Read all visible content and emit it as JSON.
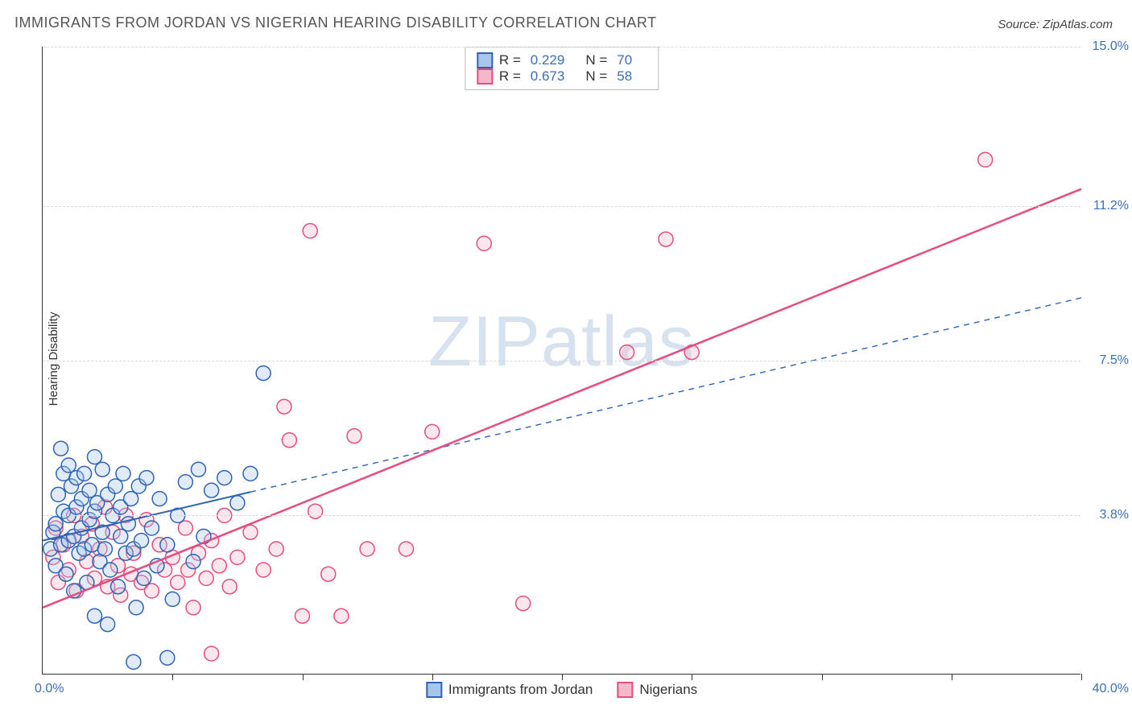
{
  "title": "IMMIGRANTS FROM JORDAN VS NIGERIAN HEARING DISABILITY CORRELATION CHART",
  "source_label": "Source: ",
  "source_name": "ZipAtlas.com",
  "y_axis_label": "Hearing Disability",
  "watermark": "ZIPatlas",
  "chart": {
    "type": "scatter",
    "xlim": [
      0,
      40
    ],
    "ylim": [
      0,
      15
    ],
    "x_min_label": "0.0%",
    "x_max_label": "40.0%",
    "y_ticks": [
      {
        "v": 3.8,
        "label": "3.8%"
      },
      {
        "v": 7.5,
        "label": "7.5%"
      },
      {
        "v": 11.2,
        "label": "11.2%"
      },
      {
        "v": 15.0,
        "label": "15.0%"
      }
    ],
    "x_tick_count": 8,
    "background_color": "#ffffff",
    "grid_color": "#d9d9d9",
    "axis_color": "#333333",
    "tick_label_color": "#3b6fb6",
    "marker_radius": 9,
    "series": [
      {
        "id": "jordan",
        "label": "Immigrants from Jordan",
        "fill": "#a8c6ec",
        "stroke": "#2e64b5",
        "trend_color": "#2e64b5",
        "trend_dash_solid_until_x": 8,
        "trend_line_width": 2,
        "R": 0.229,
        "N": 70,
        "trend": {
          "x1": 0,
          "y1": 3.2,
          "x2": 40,
          "y2": 9.0
        },
        "points": [
          [
            0.3,
            3.0
          ],
          [
            0.4,
            3.4
          ],
          [
            0.5,
            2.6
          ],
          [
            0.5,
            3.6
          ],
          [
            0.6,
            4.3
          ],
          [
            0.7,
            5.4
          ],
          [
            0.7,
            3.1
          ],
          [
            0.8,
            4.8
          ],
          [
            0.8,
            3.9
          ],
          [
            0.9,
            2.4
          ],
          [
            1.0,
            5.0
          ],
          [
            1.0,
            3.8
          ],
          [
            1.0,
            3.2
          ],
          [
            1.1,
            4.5
          ],
          [
            1.2,
            2.0
          ],
          [
            1.2,
            3.3
          ],
          [
            1.3,
            4.0
          ],
          [
            1.3,
            4.7
          ],
          [
            1.4,
            2.9
          ],
          [
            1.5,
            3.5
          ],
          [
            1.5,
            4.2
          ],
          [
            1.6,
            3.0
          ],
          [
            1.6,
            4.8
          ],
          [
            1.7,
            2.2
          ],
          [
            1.8,
            3.7
          ],
          [
            1.8,
            4.4
          ],
          [
            1.9,
            3.1
          ],
          [
            2.0,
            5.2
          ],
          [
            2.0,
            3.9
          ],
          [
            2.0,
            1.4
          ],
          [
            2.1,
            4.1
          ],
          [
            2.2,
            2.7
          ],
          [
            2.3,
            3.4
          ],
          [
            2.3,
            4.9
          ],
          [
            2.4,
            3.0
          ],
          [
            2.5,
            4.3
          ],
          [
            2.5,
            1.2
          ],
          [
            2.6,
            2.5
          ],
          [
            2.7,
            3.8
          ],
          [
            2.8,
            4.5
          ],
          [
            2.9,
            2.1
          ],
          [
            3.0,
            4.0
          ],
          [
            3.0,
            3.3
          ],
          [
            3.1,
            4.8
          ],
          [
            3.2,
            2.9
          ],
          [
            3.3,
            3.6
          ],
          [
            3.4,
            4.2
          ],
          [
            3.5,
            3.0
          ],
          [
            3.6,
            1.6
          ],
          [
            3.7,
            4.5
          ],
          [
            3.8,
            3.2
          ],
          [
            3.9,
            2.3
          ],
          [
            4.0,
            4.7
          ],
          [
            4.2,
            3.5
          ],
          [
            4.4,
            2.6
          ],
          [
            4.5,
            4.2
          ],
          [
            4.8,
            3.1
          ],
          [
            4.8,
            0.4
          ],
          [
            5.0,
            1.8
          ],
          [
            5.2,
            3.8
          ],
          [
            5.5,
            4.6
          ],
          [
            5.8,
            2.7
          ],
          [
            6.0,
            4.9
          ],
          [
            6.2,
            3.3
          ],
          [
            6.5,
            4.4
          ],
          [
            7.0,
            4.7
          ],
          [
            7.5,
            4.1
          ],
          [
            8.0,
            4.8
          ],
          [
            8.5,
            7.2
          ],
          [
            3.5,
            0.3
          ]
        ]
      },
      {
        "id": "nigerians",
        "label": "Nigerians",
        "fill": "#f3b9c8",
        "stroke": "#e54d80",
        "trend_color": "#e54d80",
        "trend_dash_solid_until_x": 40,
        "trend_line_width": 2.5,
        "R": 0.673,
        "N": 58,
        "trend": {
          "x1": 0,
          "y1": 1.6,
          "x2": 40,
          "y2": 11.6
        },
        "points": [
          [
            0.4,
            2.8
          ],
          [
            0.5,
            3.5
          ],
          [
            0.6,
            2.2
          ],
          [
            0.8,
            3.1
          ],
          [
            1.0,
            2.5
          ],
          [
            1.2,
            3.8
          ],
          [
            1.3,
            2.0
          ],
          [
            1.5,
            3.3
          ],
          [
            1.7,
            2.7
          ],
          [
            1.9,
            3.6
          ],
          [
            2.0,
            2.3
          ],
          [
            2.2,
            3.0
          ],
          [
            2.4,
            4.0
          ],
          [
            2.5,
            2.1
          ],
          [
            2.7,
            3.4
          ],
          [
            2.9,
            2.6
          ],
          [
            3.0,
            1.9
          ],
          [
            3.2,
            3.8
          ],
          [
            3.4,
            2.4
          ],
          [
            3.5,
            2.9
          ],
          [
            3.8,
            2.2
          ],
          [
            4.0,
            3.7
          ],
          [
            4.2,
            2.0
          ],
          [
            4.5,
            3.1
          ],
          [
            4.7,
            2.5
          ],
          [
            5.0,
            2.8
          ],
          [
            5.2,
            2.2
          ],
          [
            5.5,
            3.5
          ],
          [
            5.6,
            2.5
          ],
          [
            5.8,
            1.6
          ],
          [
            6.0,
            2.9
          ],
          [
            6.3,
            2.3
          ],
          [
            6.5,
            3.2
          ],
          [
            6.8,
            2.6
          ],
          [
            7.0,
            3.8
          ],
          [
            7.2,
            2.1
          ],
          [
            7.5,
            2.8
          ],
          [
            8.0,
            3.4
          ],
          [
            8.5,
            2.5
          ],
          [
            6.5,
            0.5
          ],
          [
            9.0,
            3.0
          ],
          [
            9.3,
            6.4
          ],
          [
            9.5,
            5.6
          ],
          [
            10.0,
            1.4
          ],
          [
            10.3,
            10.6
          ],
          [
            10.5,
            3.9
          ],
          [
            11.0,
            2.4
          ],
          [
            11.5,
            1.4
          ],
          [
            12.0,
            5.7
          ],
          [
            12.5,
            3.0
          ],
          [
            14.0,
            3.0
          ],
          [
            15.0,
            5.8
          ],
          [
            17.0,
            10.3
          ],
          [
            18.5,
            1.7
          ],
          [
            22.5,
            7.7
          ],
          [
            24.0,
            10.4
          ],
          [
            25.0,
            7.7
          ],
          [
            36.3,
            12.3
          ]
        ]
      }
    ]
  },
  "legend_top": {
    "r_label": "R =",
    "n_label": "N ="
  }
}
